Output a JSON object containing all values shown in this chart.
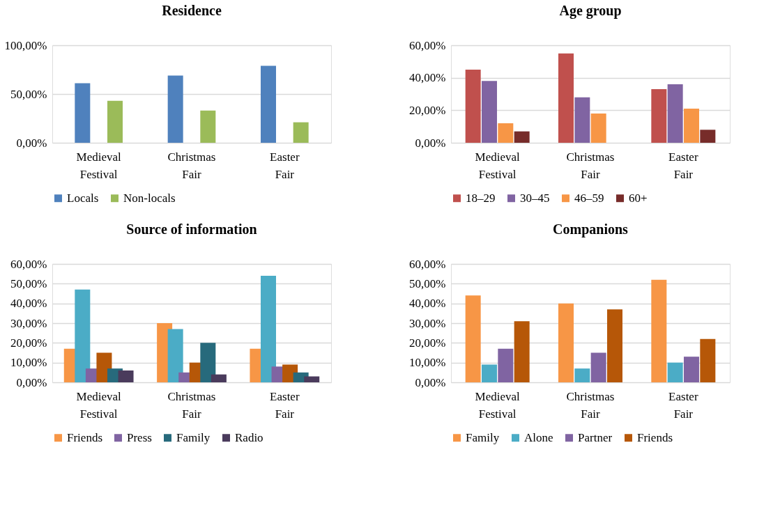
{
  "chart_data": [
    {
      "type": "bar",
      "title": "Residence",
      "categories": [
        "Medieval Festival",
        "Christmas Fair",
        "Easter Fair"
      ],
      "series": [
        {
          "name": "Locals",
          "color": "#4f81bd",
          "values": [
            61,
            69,
            79
          ]
        },
        {
          "name": "Non-locals",
          "color": "#9bbb59",
          "values": [
            43,
            33,
            21
          ]
        }
      ],
      "ylim": [
        0,
        100
      ],
      "yticks": [
        {
          "value": 0,
          "label": "0,00%"
        },
        {
          "value": 50,
          "label": "50,00%"
        },
        {
          "value": 100,
          "label": "100,00%"
        }
      ],
      "grid": "y",
      "legend": "bottom"
    },
    {
      "type": "bar",
      "title": "Age group",
      "categories": [
        "Medieval Festival",
        "Christmas Fair",
        "Easter Fair"
      ],
      "series": [
        {
          "name": "18–29",
          "color": "#c0504d",
          "values": [
            45,
            55,
            33
          ]
        },
        {
          "name": "30–45",
          "color": "#8064a2",
          "values": [
            38,
            28,
            36
          ]
        },
        {
          "name": "46–59",
          "color": "#f79646",
          "values": [
            12,
            18,
            21
          ]
        },
        {
          "name": "60+",
          "color": "#772c2a",
          "values": [
            7,
            0,
            8
          ]
        }
      ],
      "ylim": [
        0,
        60
      ],
      "yticks": [
        {
          "value": 0,
          "label": "0,00%"
        },
        {
          "value": 20,
          "label": "20,00%"
        },
        {
          "value": 40,
          "label": "40,00%"
        },
        {
          "value": 60,
          "label": "60,00%"
        }
      ],
      "grid": "y",
      "legend": "bottom"
    },
    {
      "type": "bar",
      "title": "Source of information",
      "categories": [
        "Medieval Festival",
        "Christmas Fair",
        "Easter Fair"
      ],
      "series": [
        {
          "name": "Friends",
          "color": "#f79646",
          "values": [
            17,
            30,
            17
          ]
        },
        {
          "color": "#4bacc6",
          "values": [
            47,
            27,
            54
          ]
        },
        {
          "name": "Press",
          "color": "#8064a2",
          "values": [
            7,
            5,
            8
          ]
        },
        {
          "color": "#b65708",
          "values": [
            15,
            10,
            9
          ]
        },
        {
          "name": "Family",
          "color": "#276a7c",
          "values": [
            7,
            20,
            5
          ]
        },
        {
          "name": "Radio",
          "color": "#4a3b5c",
          "values": [
            6,
            4,
            3
          ]
        }
      ],
      "ylim": [
        0,
        60
      ],
      "yticks": [
        {
          "value": 0,
          "label": "0,00%"
        },
        {
          "value": 10,
          "label": "10,00%"
        },
        {
          "value": 20,
          "label": "20,00%"
        },
        {
          "value": 30,
          "label": "30,00%"
        },
        {
          "value": 40,
          "label": "40,00%"
        },
        {
          "value": 50,
          "label": "50,00%"
        },
        {
          "value": 60,
          "label": "60,00%"
        }
      ],
      "grid": "y",
      "legend": "bottom"
    },
    {
      "type": "bar",
      "title": "Companions",
      "categories": [
        "Medieval Festival",
        "Christmas Fair",
        "Easter Fair"
      ],
      "series": [
        {
          "name": "Family",
          "color": "#f79646",
          "values": [
            44,
            40,
            52
          ]
        },
        {
          "name": "Alone",
          "color": "#4bacc6",
          "values": [
            9,
            7,
            10
          ]
        },
        {
          "name": "Partner",
          "color": "#8064a2",
          "values": [
            17,
            15,
            13
          ]
        },
        {
          "name": "Friends",
          "color": "#b65708",
          "values": [
            31,
            37,
            22
          ]
        }
      ],
      "ylim": [
        0,
        60
      ],
      "yticks": [
        {
          "value": 0,
          "label": "0,00%"
        },
        {
          "value": 10,
          "label": "10,00%"
        },
        {
          "value": 20,
          "label": "20,00%"
        },
        {
          "value": 30,
          "label": "30,00%"
        },
        {
          "value": 40,
          "label": "40,00%"
        },
        {
          "value": 50,
          "label": "50,00%"
        },
        {
          "value": 60,
          "label": "60,00%"
        }
      ],
      "grid": "y",
      "legend": "bottom"
    }
  ]
}
